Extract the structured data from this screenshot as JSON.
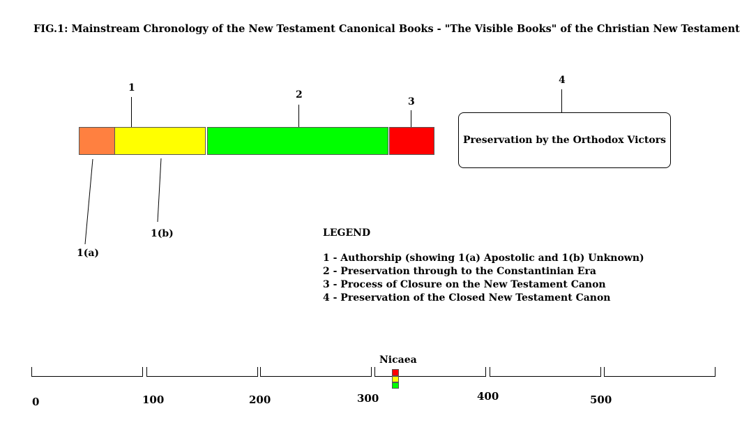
{
  "figure": {
    "title": "FIG.1: Mainstream Chronology of the New Testament Canonical Books - \"The Visible Books\" of the Christian New Testament"
  },
  "markers": {
    "m1": "1",
    "m2": "2",
    "m3": "3",
    "m4": "4",
    "m1a": "1(a)",
    "m1b": "1(b)"
  },
  "phases": [
    {
      "id": "1(a)",
      "color": "#ff8040"
    },
    {
      "id": "1(b)",
      "color": "#ffff00"
    },
    {
      "id": "2",
      "color": "#00ff00"
    },
    {
      "id": "3",
      "color": "#ff0000"
    }
  ],
  "box": {
    "label": "Preservation by the Orthodox Victors"
  },
  "legend": {
    "title": "LEGEND",
    "items": [
      "1 - Authorship (showing 1(a) Apostolic and 1(b) Unknown)",
      "2 - Preservation through to the Constantinian Era",
      "3 - Process of Closure on the New Testament Canon",
      "4 - Preservation of the Closed New Testament Canon"
    ]
  },
  "timeline": {
    "ticks": [
      "0",
      "100",
      "200",
      "300",
      "400",
      "500"
    ],
    "marker_label": "Nicaea",
    "marker_colors": [
      "#ff0000",
      "#ffff00",
      "#00ff00"
    ]
  }
}
